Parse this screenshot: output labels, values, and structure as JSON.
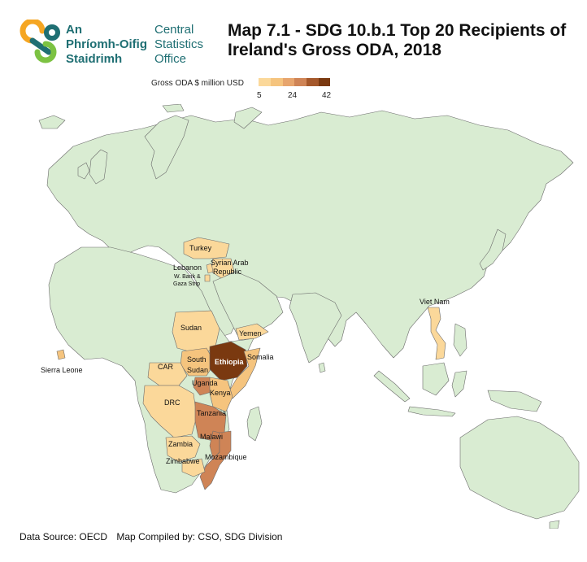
{
  "logo": {
    "org_irish_line1": "An",
    "org_irish_line2": "Phríomh-Oifig",
    "org_irish_line3": "Staidrimh",
    "org_english_line1": "Central",
    "org_english_line2": "Statistics",
    "org_english_line3": "Office",
    "colors": {
      "teal": "#1f6f73",
      "orange": "#f5a623",
      "green": "#7cc242"
    }
  },
  "title": "Map 7.1 - SDG 10.b.1 Top 20 Recipients of Ireland's Gross ODA, 2018",
  "legend": {
    "title": "Gross ODA $ million USD",
    "ticks": [
      "5",
      "24",
      "42"
    ],
    "colors": [
      "#fbd89a",
      "#f5c47e",
      "#e7a56d",
      "#cf8456",
      "#a5582b",
      "#7a3910"
    ]
  },
  "map": {
    "land_color": "#d9ecd2",
    "border_color": "#6b6b6b",
    "labels": {
      "turkey": "Turkey",
      "syria_1": "Syrian Arab",
      "syria_2": "Republic",
      "lebanon": "Lebanon",
      "wbank_1": "W. Bank &",
      "wbank_2": "Gaza Strip",
      "sudan": "Sudan",
      "yemen": "Yemen",
      "ethiopia": "Ethiopia",
      "somalia": "Somalia",
      "south_sudan_1": "South",
      "south_sudan_2": "Sudan",
      "car": "CAR",
      "uganda": "Uganda",
      "kenya": "Kenya",
      "drc": "DRC",
      "tanzania": "Tanzania",
      "malawi": "Malawi",
      "zambia": "Zambia",
      "mozambique": "Mozambique",
      "zimbabwe": "Zimbabwe",
      "sierra_leone": "Sierra Leone",
      "viet_nam": "Viet Nam"
    }
  },
  "footer": {
    "source": "Data Source: OECD",
    "compiled": "Map Compiled by: CSO, SDG Division"
  }
}
